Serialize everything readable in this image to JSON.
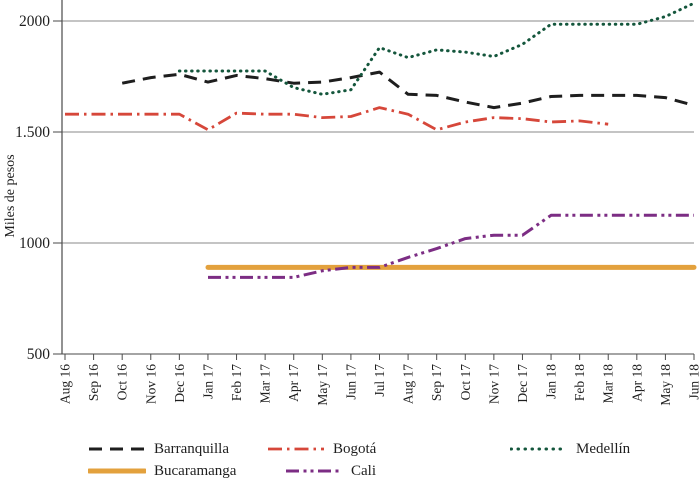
{
  "chart_data": {
    "type": "line",
    "title": "",
    "xlabel": "",
    "ylabel": "Miles de pesos",
    "ylim": [
      500,
      2095
    ],
    "grid": "horizontal",
    "legend_position": "bottom",
    "categories": [
      "Aug 16",
      "Sep 16",
      "Oct 16",
      "Nov 16",
      "Dec 16",
      "Jan 17",
      "Feb 17",
      "Mar 17",
      "Apr 17",
      "May 17",
      "Jun 17",
      "Jul 17",
      "Aug 17",
      "Sep 17",
      "Oct 17",
      "Nov 17",
      "Dec 17",
      "Jan 18",
      "Feb 18",
      "Mar 18",
      "Apr 18",
      "May 18",
      "Jun 18"
    ],
    "y_ticks": [
      {
        "value": 2000,
        "label": "2000"
      },
      {
        "value": 1500,
        "label": "1.500"
      },
      {
        "value": 1000,
        "label": "1000"
      },
      {
        "value": 500,
        "label": "500"
      }
    ],
    "series": [
      {
        "name": "Barranquilla",
        "color": "#1e1e1e",
        "style": "dashed",
        "values": [
          null,
          null,
          1720,
          1745,
          1760,
          1725,
          1755,
          1740,
          1720,
          1725,
          1745,
          1770,
          1670,
          1665,
          1635,
          1610,
          1630,
          1660,
          1665,
          1665,
          1665,
          1655,
          1620
        ]
      },
      {
        "name": "Bogotá",
        "color": "#d6473a",
        "style": "dash-dot",
        "values": [
          1580,
          1580,
          1580,
          1580,
          1580,
          1510,
          1585,
          1580,
          1580,
          1565,
          1570,
          1610,
          1580,
          1510,
          1545,
          1565,
          1560,
          1545,
          1550,
          1535,
          null,
          null,
          null
        ]
      },
      {
        "name": "Medellín",
        "color": "#14563c",
        "style": "dotted",
        "values": [
          null,
          null,
          null,
          null,
          1775,
          1775,
          1775,
          1775,
          1700,
          1670,
          1690,
          1880,
          1835,
          1870,
          1860,
          1840,
          1895,
          1985,
          1985,
          1985,
          1985,
          2020,
          2080
        ]
      },
      {
        "name": "Bucaramanga",
        "color": "#e3a13d",
        "style": "solid",
        "values": [
          null,
          null,
          null,
          null,
          null,
          890,
          890,
          890,
          890,
          890,
          890,
          890,
          890,
          890,
          890,
          890,
          890,
          890,
          890,
          890,
          890,
          890,
          890
        ]
      },
      {
        "name": "Cali",
        "color": "#7c2d84",
        "style": "dash-dot-dot",
        "values": [
          null,
          null,
          null,
          null,
          null,
          845,
          845,
          845,
          845,
          875,
          890,
          890,
          935,
          975,
          1020,
          1035,
          1035,
          1125,
          1125,
          1125,
          1125,
          1125,
          1125
        ]
      }
    ]
  },
  "axis_colors": {
    "grid": "#8a8a8a",
    "axis": "#4a4a4a",
    "text": "#1f1f1f"
  }
}
